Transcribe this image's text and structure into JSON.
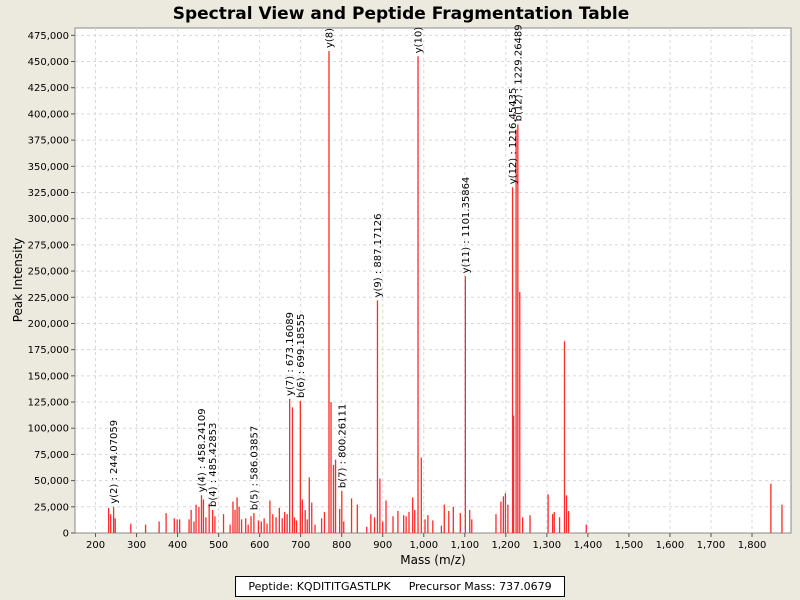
{
  "chart_data": {
    "type": "bar",
    "title": "Spectral View and Peptide Fragmentation Table",
    "xlabel": "Mass (m/z)",
    "ylabel": "Peak Intensity",
    "xlim": [
      150,
      1895
    ],
    "ylim": [
      0,
      482000
    ],
    "x_ticks": [
      200,
      300,
      400,
      500,
      600,
      700,
      800,
      900,
      1000,
      1100,
      1200,
      1300,
      1400,
      1500,
      1600,
      1700,
      1800
    ],
    "x_tick_labels": [
      "200",
      "300",
      "400",
      "500",
      "600",
      "700",
      "800",
      "900",
      "1,000",
      "1,100",
      "1,200",
      "1,300",
      "1,400",
      "1,500",
      "1,600",
      "1,700",
      "1,800"
    ],
    "y_ticks": [
      0,
      25000,
      50000,
      75000,
      100000,
      125000,
      150000,
      175000,
      200000,
      225000,
      250000,
      275000,
      300000,
      325000,
      350000,
      375000,
      400000,
      425000,
      450000,
      475000
    ],
    "y_tick_labels": [
      "0",
      "25,000",
      "50,000",
      "75,000",
      "100,000",
      "125,000",
      "150,000",
      "175,000",
      "200,000",
      "225,000",
      "250,000",
      "275,000",
      "300,000",
      "325,000",
      "350,000",
      "375,000",
      "400,000",
      "425,000",
      "450,000",
      "475,000"
    ],
    "grid": true,
    "bar_color": "#ff2a2a",
    "series": [
      {
        "name": "peaks",
        "points": [
          [
            232,
            24000
          ],
          [
            237,
            18000
          ],
          [
            244.07,
            25000
          ],
          [
            248,
            14000
          ],
          [
            286,
            9000
          ],
          [
            322,
            8000
          ],
          [
            355,
            11000
          ],
          [
            372,
            19000
          ],
          [
            392,
            14000
          ],
          [
            399,
            13000
          ],
          [
            405,
            13000
          ],
          [
            428,
            13000
          ],
          [
            433,
            22000
          ],
          [
            440,
            11000
          ],
          [
            445,
            27000
          ],
          [
            452,
            25000
          ],
          [
            458.24,
            36000
          ],
          [
            463,
            32000
          ],
          [
            469,
            15000
          ],
          [
            477,
            28000
          ],
          [
            485.43,
            22000
          ],
          [
            491,
            16000
          ],
          [
            512,
            18000
          ],
          [
            528,
            8000
          ],
          [
            535,
            30000
          ],
          [
            540,
            22000
          ],
          [
            545,
            34000
          ],
          [
            550,
            25000
          ],
          [
            556,
            13000
          ],
          [
            566,
            14000
          ],
          [
            572,
            8000
          ],
          [
            579,
            16000
          ],
          [
            586.04,
            19000
          ],
          [
            597,
            12000
          ],
          [
            604,
            11000
          ],
          [
            611,
            14000
          ],
          [
            618,
            9000
          ],
          [
            625,
            31000
          ],
          [
            632,
            18000
          ],
          [
            640,
            15000
          ],
          [
            648,
            24000
          ],
          [
            655,
            14000
          ],
          [
            661,
            20000
          ],
          [
            667,
            18000
          ],
          [
            673.16,
            128000
          ],
          [
            680,
            120000
          ],
          [
            685,
            15000
          ],
          [
            690,
            12000
          ],
          [
            699.19,
            126000
          ],
          [
            704,
            32000
          ],
          [
            711,
            22000
          ],
          [
            716,
            13000
          ],
          [
            721,
            53000
          ],
          [
            727,
            29000
          ],
          [
            735,
            8000
          ],
          [
            751,
            14000
          ],
          [
            758,
            20000
          ],
          [
            769,
            460000
          ],
          [
            774,
            125000
          ],
          [
            780,
            65000
          ],
          [
            785,
            70000
          ],
          [
            795,
            23000
          ],
          [
            800.26,
            40000
          ],
          [
            805,
            11000
          ],
          [
            824,
            33000
          ],
          [
            838,
            27000
          ],
          [
            861,
            6000
          ],
          [
            871,
            18000
          ],
          [
            880,
            15000
          ],
          [
            887.17,
            222000
          ],
          [
            893,
            52000
          ],
          [
            900,
            11000
          ],
          [
            908,
            31000
          ],
          [
            925,
            16000
          ],
          [
            937,
            21000
          ],
          [
            951,
            17000
          ],
          [
            957,
            16000
          ],
          [
            964,
            20000
          ],
          [
            973,
            34000
          ],
          [
            978,
            22000
          ],
          [
            986,
            455000
          ],
          [
            994,
            72000
          ],
          [
            1003,
            13000
          ],
          [
            1010,
            17000
          ],
          [
            1022,
            12000
          ],
          [
            1043,
            7000
          ],
          [
            1050,
            27000
          ],
          [
            1061,
            21000
          ],
          [
            1072,
            25000
          ],
          [
            1089,
            19000
          ],
          [
            1101.36,
            245000
          ],
          [
            1112,
            22000
          ],
          [
            1117,
            13000
          ],
          [
            1176,
            18000
          ],
          [
            1188,
            30000
          ],
          [
            1194,
            35000
          ],
          [
            1199,
            38000
          ],
          [
            1205,
            27000
          ],
          [
            1216.45,
            330000
          ],
          [
            1219,
            112000
          ],
          [
            1225,
            385000
          ],
          [
            1229.26,
            390000
          ],
          [
            1234,
            230000
          ],
          [
            1241,
            15000
          ],
          [
            1259,
            17000
          ],
          [
            1303,
            37000
          ],
          [
            1314,
            18000
          ],
          [
            1318,
            20000
          ],
          [
            1331,
            15000
          ],
          [
            1343,
            183000
          ],
          [
            1348,
            36000
          ],
          [
            1353,
            21000
          ],
          [
            1396,
            8000
          ],
          [
            1846,
            47000
          ],
          [
            1873,
            27000
          ]
        ]
      }
    ],
    "annotations": [
      {
        "text": "y(2) : 244.07059",
        "x": 244.07,
        "y": 25000
      },
      {
        "text": "y(4) : 458.24109",
        "x": 458.24,
        "y": 36000
      },
      {
        "text": "b(4) : 485.42853",
        "x": 485.43,
        "y": 22000
      },
      {
        "text": "b(5) : 586.03857",
        "x": 586.04,
        "y": 19000
      },
      {
        "text": "y(7) : 673.16089",
        "x": 673.16,
        "y": 128000
      },
      {
        "text": "b(6) : 699.18555",
        "x": 699.19,
        "y": 126000
      },
      {
        "text": "y(8)",
        "x": 769,
        "y": 460000
      },
      {
        "text": "b(7) : 800.26111",
        "x": 800.26,
        "y": 40000
      },
      {
        "text": "y(9) : 887.17126",
        "x": 887.17,
        "y": 222000
      },
      {
        "text": "y(10)",
        "x": 986,
        "y": 455000
      },
      {
        "text": "y(11) : 1101.35864",
        "x": 1101.36,
        "y": 245000
      },
      {
        "text": "y(12) : 1216.45435",
        "x": 1216.45,
        "y": 330000
      },
      {
        "text": "b(12) : 1229.26489",
        "x": 1229.26,
        "y": 390000
      }
    ]
  },
  "legend": {
    "peptide": "Peptide: KQDITITGASTLPK",
    "precursor": "Precursor Mass: 737.0679"
  }
}
